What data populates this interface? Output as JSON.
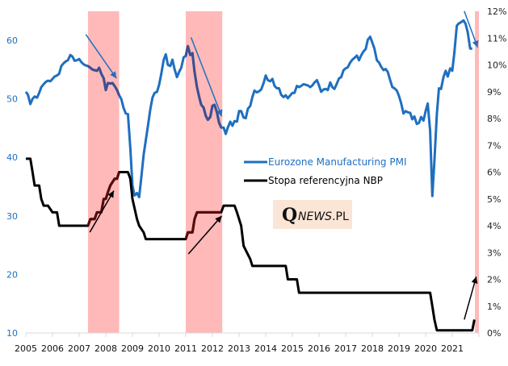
{
  "chart_data": {
    "type": "line",
    "title": "",
    "xlabel": "",
    "ylabel_left": "",
    "ylabel_right": "",
    "x_ticks": [
      "2005",
      "2006",
      "2007",
      "2008",
      "2009",
      "2010",
      "2011",
      "2012",
      "2013",
      "2014",
      "2015",
      "2016",
      "2017",
      "2018",
      "2019",
      "2020",
      "2021"
    ],
    "x_range": [
      2005,
      2022
    ],
    "y_left": {
      "ticks": [
        "10",
        "20",
        "30",
        "40",
        "50",
        "60"
      ],
      "range": [
        10,
        65
      ]
    },
    "y_right": {
      "ticks": [
        "0%",
        "1%",
        "2%",
        "3%",
        "4%",
        "5%",
        "6%",
        "7%",
        "8%",
        "9%",
        "10%",
        "11%",
        "12%"
      ],
      "range": [
        0,
        12
      ]
    },
    "legend": {
      "placement": "center-right",
      "entries": [
        "Eurozone Manufacturing PMI",
        "Stopa referencyjna NBP"
      ]
    },
    "colors": {
      "pmi": "#1f6fbf",
      "pmi_highlight": "#3f4f8f",
      "nbp": "#000000",
      "nbp_highlight": "#5a0a0a",
      "band": "#ffb9b9",
      "logo_bg": "#fbe5d6",
      "arrow_blue": "#1f6fbf",
      "arrow_black": "#000000"
    },
    "highlight_bands": [
      {
        "start": 2007.33,
        "end": 2008.5
      },
      {
        "start": 2011.0,
        "end": 2012.37
      },
      {
        "start": 2021.85,
        "end": 2022.0
      }
    ],
    "series": [
      {
        "name": "Eurozone Manufacturing PMI",
        "axis": "left",
        "x": [
          2005.0,
          2005.08,
          2005.17,
          2005.25,
          2005.33,
          2005.42,
          2005.5,
          2005.58,
          2005.67,
          2005.75,
          2005.83,
          2005.92,
          2006.0,
          2006.08,
          2006.17,
          2006.25,
          2006.33,
          2006.42,
          2006.5,
          2006.58,
          2006.67,
          2006.75,
          2006.83,
          2006.92,
          2007.0,
          2007.08,
          2007.17,
          2007.25,
          2007.33,
          2007.42,
          2007.5,
          2007.58,
          2007.67,
          2007.75,
          2007.83,
          2007.92,
          2008.0,
          2008.08,
          2008.17,
          2008.25,
          2008.33,
          2008.42,
          2008.5,
          2008.58,
          2008.67,
          2008.75,
          2008.83,
          2008.92,
          2009.0,
          2009.08,
          2009.17,
          2009.25,
          2009.33,
          2009.42,
          2009.5,
          2009.58,
          2009.67,
          2009.75,
          2009.83,
          2009.92,
          2010.0,
          2010.08,
          2010.17,
          2010.25,
          2010.33,
          2010.42,
          2010.5,
          2010.58,
          2010.67,
          2010.75,
          2010.83,
          2010.92,
          2011.0,
          2011.08,
          2011.17,
          2011.25,
          2011.33,
          2011.42,
          2011.5,
          2011.58,
          2011.67,
          2011.75,
          2011.83,
          2011.92,
          2012.0,
          2012.08,
          2012.17,
          2012.25,
          2012.33,
          2012.42,
          2012.5,
          2012.58,
          2012.67,
          2012.75,
          2012.83,
          2012.92,
          2013.0,
          2013.08,
          2013.17,
          2013.25,
          2013.33,
          2013.42,
          2013.5,
          2013.58,
          2013.67,
          2013.75,
          2013.83,
          2013.92,
          2014.0,
          2014.08,
          2014.17,
          2014.25,
          2014.33,
          2014.42,
          2014.5,
          2014.58,
          2014.67,
          2014.75,
          2014.83,
          2014.92,
          2015.0,
          2015.08,
          2015.17,
          2015.25,
          2015.33,
          2015.42,
          2015.5,
          2015.58,
          2015.67,
          2015.75,
          2015.83,
          2015.92,
          2016.0,
          2016.08,
          2016.17,
          2016.25,
          2016.33,
          2016.42,
          2016.5,
          2016.58,
          2016.67,
          2016.75,
          2016.83,
          2016.92,
          2017.0,
          2017.08,
          2017.17,
          2017.25,
          2017.33,
          2017.42,
          2017.5,
          2017.58,
          2017.67,
          2017.75,
          2017.83,
          2017.92,
          2018.0,
          2018.08,
          2018.17,
          2018.25,
          2018.33,
          2018.42,
          2018.5,
          2018.58,
          2018.67,
          2018.75,
          2018.83,
          2018.92,
          2019.0,
          2019.08,
          2019.17,
          2019.25,
          2019.33,
          2019.42,
          2019.5,
          2019.58,
          2019.67,
          2019.75,
          2019.83,
          2019.92,
          2020.0,
          2020.08,
          2020.17,
          2020.25,
          2020.33,
          2020.42,
          2020.5,
          2020.58,
          2020.67,
          2020.75,
          2020.83,
          2020.92,
          2021.0,
          2021.08,
          2021.17,
          2021.25,
          2021.33,
          2021.42,
          2021.5,
          2021.58,
          2021.67,
          2021.75
        ],
        "values": [
          51.2,
          50.7,
          49.1,
          50.0,
          50.4,
          50.2,
          51.0,
          52.0,
          52.5,
          52.9,
          53.1,
          53.0,
          53.4,
          53.8,
          54.0,
          54.3,
          55.6,
          56.1,
          56.4,
          56.6,
          57.5,
          57.2,
          56.5,
          56.6,
          56.8,
          56.3,
          55.9,
          55.7,
          55.6,
          55.3,
          55.0,
          54.9,
          54.8,
          55.3,
          54.3,
          53.5,
          51.5,
          52.7,
          52.6,
          52.7,
          52.2,
          51.5,
          50.6,
          50.0,
          48.4,
          47.5,
          47.4,
          41.5,
          35.2,
          33.5,
          33.9,
          33.2,
          36.5,
          40.5,
          42.9,
          45.3,
          48.2,
          50.2,
          51.0,
          51.2,
          52.4,
          54.2,
          56.6,
          57.6,
          55.8,
          55.6,
          56.7,
          55.1,
          53.7,
          54.6,
          55.3,
          57.1,
          57.3,
          59.0,
          57.5,
          57.8,
          54.6,
          52.0,
          50.4,
          49.0,
          48.5,
          47.1,
          46.4,
          46.9,
          48.8,
          49.0,
          47.7,
          45.9,
          45.1,
          45.1,
          44.0,
          45.1,
          46.1,
          45.4,
          46.2,
          46.1,
          47.9,
          47.9,
          46.8,
          46.7,
          48.3,
          48.8,
          50.3,
          51.4,
          51.1,
          51.3,
          51.6,
          52.7,
          54.0,
          53.2,
          53.0,
          53.4,
          52.2,
          51.8,
          51.8,
          50.7,
          50.3,
          50.6,
          50.1,
          50.6,
          51.0,
          51.0,
          52.2,
          52.0,
          52.2,
          52.5,
          52.4,
          52.3,
          52.0,
          52.3,
          52.8,
          53.2,
          52.3,
          51.2,
          51.6,
          51.7,
          51.5,
          52.8,
          52.0,
          51.7,
          52.6,
          53.5,
          53.7,
          54.9,
          55.2,
          55.4,
          56.2,
          56.7,
          57.0,
          57.4,
          56.6,
          57.4,
          58.1,
          58.5,
          60.1,
          60.6,
          59.6,
          58.6,
          56.6,
          56.2,
          55.5,
          54.9,
          55.1,
          54.6,
          53.2,
          52.0,
          51.8,
          51.4,
          50.5,
          49.3,
          47.5,
          47.9,
          47.7,
          47.6,
          46.5,
          47.0,
          45.7,
          45.9,
          46.9,
          46.3,
          47.9,
          49.2,
          44.5,
          33.4,
          39.4,
          47.4,
          51.8,
          51.7,
          53.7,
          54.8,
          53.8,
          55.2,
          54.8,
          57.9,
          62.5,
          62.9,
          63.1,
          63.4,
          62.8,
          61.4,
          58.6,
          58.6
        ]
      },
      {
        "name": "Stopa referencyjna NBP",
        "axis": "right",
        "x": [
          2005.0,
          2005.17,
          2005.25,
          2005.33,
          2005.5,
          2005.58,
          2005.67,
          2005.83,
          2006.0,
          2006.17,
          2006.25,
          2007.33,
          2007.42,
          2007.58,
          2007.67,
          2007.83,
          2007.92,
          2008.0,
          2008.08,
          2008.17,
          2008.33,
          2008.42,
          2008.5,
          2008.83,
          2008.92,
          2009.0,
          2009.17,
          2009.25,
          2009.42,
          2009.5,
          2011.0,
          2011.08,
          2011.25,
          2011.33,
          2011.42,
          2012.33,
          2012.42,
          2012.83,
          2012.92,
          2013.0,
          2013.08,
          2013.17,
          2013.42,
          2013.5,
          2014.75,
          2014.83,
          2015.17,
          2015.25,
          2020.17,
          2020.25,
          2020.33,
          2020.42,
          2021.75,
          2021.83
        ],
        "values": [
          6.5,
          6.5,
          6.0,
          5.5,
          5.5,
          5.0,
          4.75,
          4.75,
          4.5,
          4.5,
          4.0,
          4.0,
          4.25,
          4.25,
          4.5,
          4.5,
          5.0,
          5.0,
          5.25,
          5.5,
          5.75,
          5.75,
          6.0,
          6.0,
          5.75,
          5.0,
          4.25,
          4.0,
          3.75,
          3.5,
          3.5,
          3.75,
          3.75,
          4.25,
          4.5,
          4.5,
          4.75,
          4.75,
          4.5,
          4.25,
          4.0,
          3.25,
          2.75,
          2.5,
          2.5,
          2.0,
          2.0,
          1.5,
          1.5,
          1.0,
          0.5,
          0.1,
          0.1,
          0.5
        ]
      }
    ],
    "annotations": {
      "arrows": [
        {
          "color": "blue",
          "from": [
            2007.25,
            61
          ],
          "to": [
            2008.4,
            53.5
          ]
        },
        {
          "color": "blue",
          "from": [
            2011.2,
            60.5
          ],
          "to": [
            2012.35,
            47
          ]
        },
        {
          "color": "blue",
          "from": [
            2021.45,
            65
          ],
          "to": [
            2021.95,
            58.8
          ]
        },
        {
          "color": "black",
          "from": [
            2007.4,
            27.2
          ],
          "to": [
            2008.3,
            34.3
          ]
        },
        {
          "color": "black",
          "from": [
            2011.1,
            23.5
          ],
          "to": [
            2012.35,
            30
          ]
        },
        {
          "color": "black",
          "from": [
            2021.45,
            0.5
          ],
          "to": [
            2021.9,
            2.1
          ]
        }
      ]
    }
  },
  "logo": {
    "q": "Q",
    "news": "NEWS",
    "pl": ".PL"
  }
}
